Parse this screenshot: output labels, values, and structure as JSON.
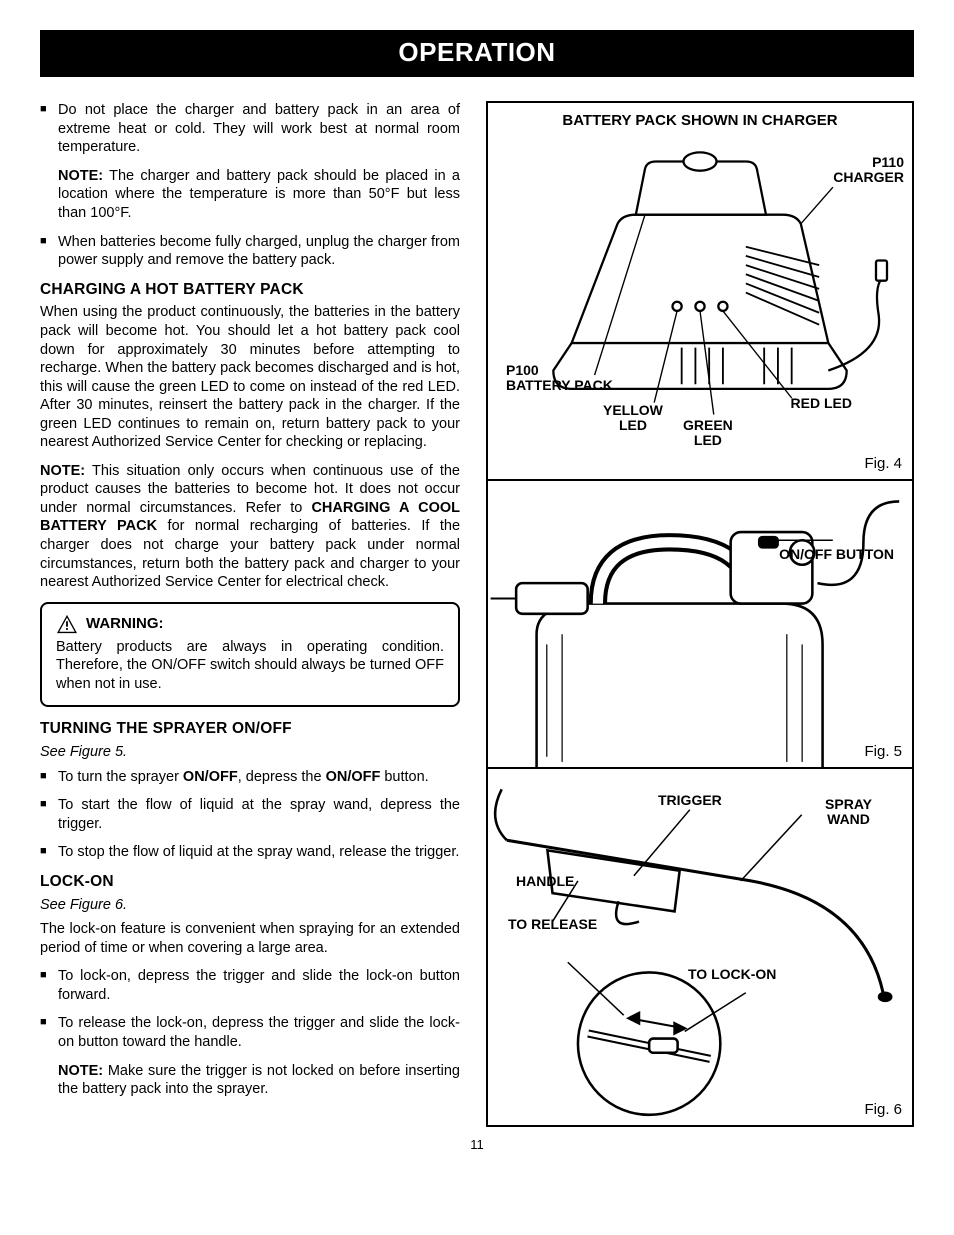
{
  "page": {
    "title": "OPERATION",
    "number": "11"
  },
  "left": {
    "bullets1": [
      {
        "text": "Do not place the charger and battery pack in an area of extreme heat or cold. They will work best at normal room temperature."
      },
      {
        "note_label": "NOTE:",
        "note_text": " The charger and battery pack should be placed in a location where the temperature is more than 50°F but less than 100°F."
      },
      {
        "text": "When batteries become fully charged, unplug the charger from power supply and remove the battery pack."
      }
    ],
    "hot": {
      "heading": "CHARGING A HOT BATTERY PACK",
      "p1": "When using the product continuously, the batteries in the battery pack will become hot. You should let a hot battery pack cool down for approximately 30 minutes before attempting to recharge. When the battery pack becomes discharged and is hot, this will cause the green LED to come on instead of the red LED. After 30 minutes, reinsert the battery pack in the charger. If the green LED continues to remain on, return battery pack to your nearest Authorized Service Center  for checking or replacing.",
      "note_label": "NOTE:",
      "note_text_a": " This situation only occurs when continuous use of the product causes the batteries to become hot. It does not occur under normal circumstances. Refer to ",
      "note_bold": "CHARGING A COOL BATTERY PACK",
      "note_text_b": " for normal recharging of batteries. If the charger does not charge your battery pack under normal circumstances, return both the battery pack and charger to your nearest Authorized Service Center for electrical check."
    },
    "warning": {
      "heading": "WARNING:",
      "text": "Battery products are always in operating condition. Therefore, the ON/OFF switch should always be turned OFF when not in use."
    },
    "onoff": {
      "heading": "TURNING THE SPRAYER ON/OFF",
      "see": "See Figure 5.",
      "b1_a": "To turn the sprayer ",
      "b1_b": "ON/OFF",
      "b1_c": ", depress the ",
      "b1_d": "ON/OFF",
      "b1_e": " button.",
      "b2": "To start the flow of liquid at the spray wand, depress the trigger.",
      "b3": "To stop the flow of liquid at the spray wand, release the trigger."
    },
    "lockon": {
      "heading": "LOCK-ON",
      "see": "See Figure 6.",
      "p1": "The lock-on feature is convenient when spraying for an extended period of time or when covering a large area.",
      "b1": "To lock-on, depress the trigger and slide the lock-on button forward.",
      "b2": "To release the lock-on, depress the trigger and slide the lock-on button toward the handle.",
      "note_label": "NOTE:",
      "note_text": " Make sure the trigger is not locked on before inserting the battery pack into the sprayer."
    }
  },
  "figs": {
    "f4": {
      "caption": "Fig. 4",
      "title": "BATTERY PACK SHOWN IN CHARGER",
      "labels": {
        "charger": "P110\nCHARGER",
        "pack": "P100\nBATTERY PACK",
        "red": "RED LED",
        "yellow": "YELLOW\nLED",
        "green": "GREEN\nLED"
      }
    },
    "f5": {
      "caption": "Fig. 5",
      "labels": {
        "onoff": "ON/OFF BUTTON"
      }
    },
    "f6": {
      "caption": "Fig. 6",
      "labels": {
        "trigger": "TRIGGER",
        "wand": "SPRAY\nWAND",
        "handle": "HANDLE",
        "release": "TO RELEASE",
        "lockon": "TO LOCK-ON"
      }
    }
  }
}
